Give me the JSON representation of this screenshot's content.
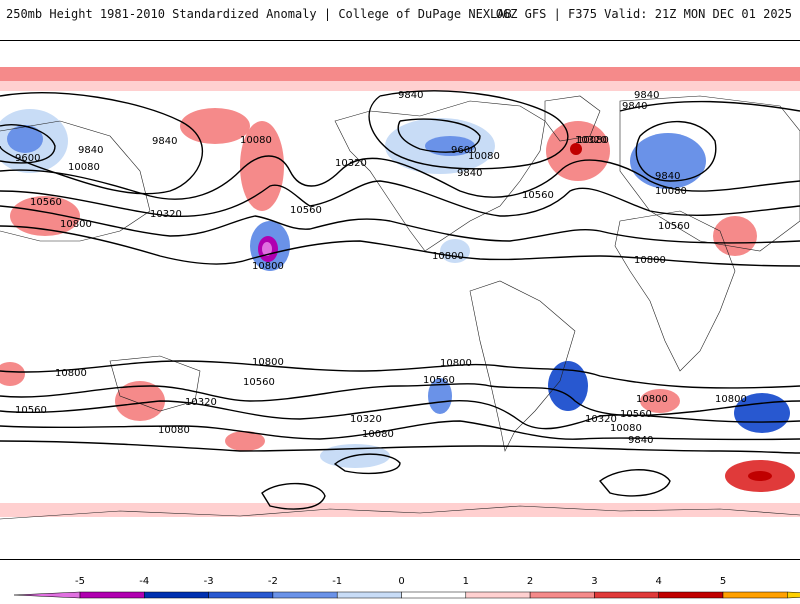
{
  "header": {
    "title": "250mb Height 1981-2010 Standardized Anomaly | College of DuPage NEXLAB",
    "run_info": "06Z GFS | F375 Valid: 21Z MON DEC 01 2025"
  },
  "contour_labels": [
    "9840",
    "9840",
    "9840",
    "9840",
    "9840",
    "9840",
    "9840",
    "9840",
    "9600",
    "9600",
    "10080",
    "10080",
    "10080",
    "10080",
    "10080",
    "10080",
    "10080",
    "10080",
    "10320",
    "10320",
    "10320",
    "10320",
    "10320",
    "10320",
    "10560",
    "10560",
    "10560",
    "10560",
    "10560",
    "10560",
    "10560",
    "10560",
    "10800",
    "10800",
    "10800",
    "10800",
    "10800",
    "10800",
    "10800",
    "10800",
    "10800"
  ],
  "legend": {
    "ticks": [
      "-5",
      "-4",
      "-3",
      "-2",
      "-1",
      "0",
      "1",
      "2",
      "3",
      "4",
      "5"
    ],
    "colors": [
      "#b000b0",
      "#0030b0",
      "#2858d0",
      "#6a92e8",
      "#c8dcf6",
      "#ffffff",
      "#ffd0d0",
      "#f58a8a",
      "#e03a3a",
      "#c00000",
      "#ffa000"
    ],
    "low_end_color": "#e070e0",
    "high_end_color": "#ffd000"
  }
}
